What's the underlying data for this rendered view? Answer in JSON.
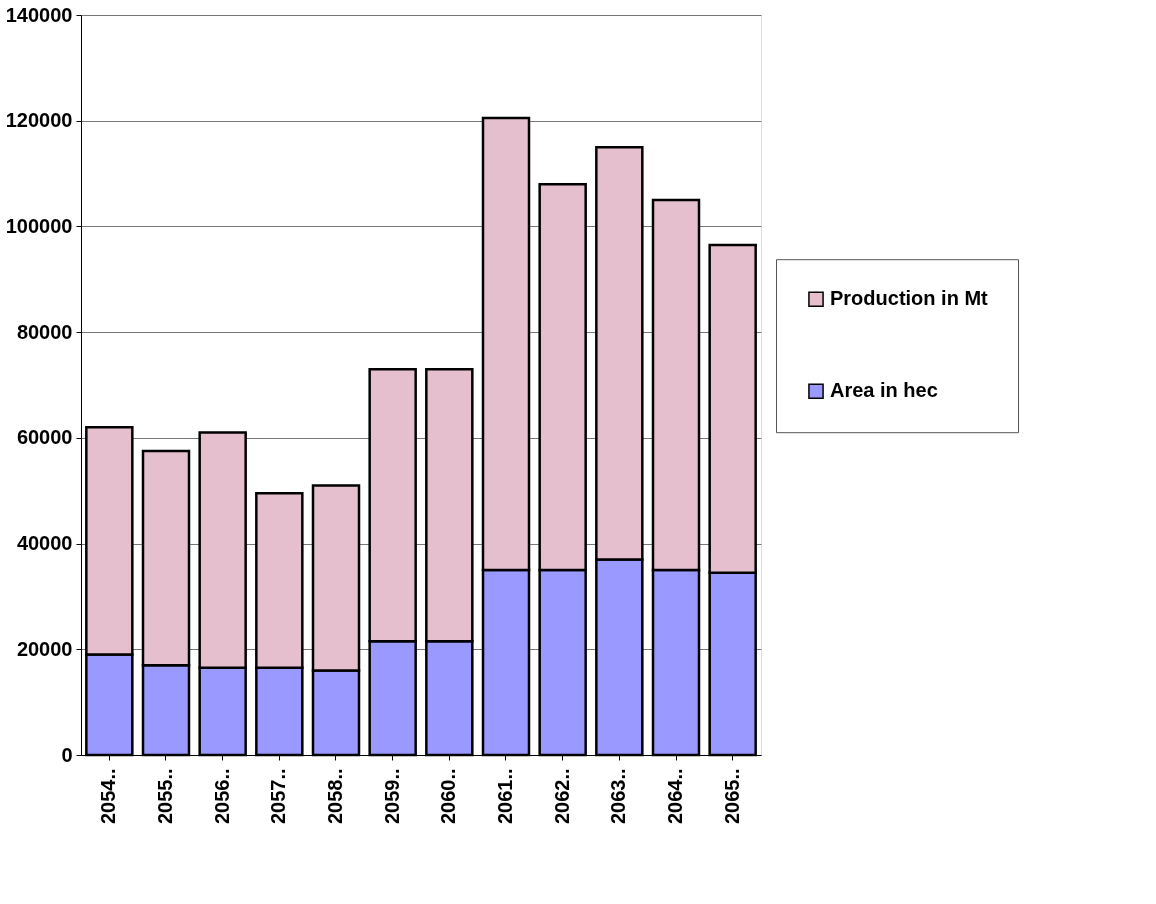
{
  "chart_data": {
    "type": "bar",
    "stacked": true,
    "categories": [
      "2054..",
      "2055..",
      "2056..",
      "2057..",
      "2058..",
      "2059..",
      "2060..",
      "2061..",
      "2062..",
      "2063..",
      "2064..",
      "2065.."
    ],
    "series": [
      {
        "name": "Area in hec",
        "color": "#9999ff",
        "values": [
          19000,
          17000,
          16500,
          16500,
          16000,
          21500,
          21500,
          35000,
          35000,
          37000,
          35000,
          34500
        ]
      },
      {
        "name": "Production in Mt",
        "color": "#e6bfcf",
        "values": [
          43000,
          40500,
          44500,
          33000,
          35000,
          51500,
          51500,
          85500,
          73000,
          78000,
          70000,
          62000
        ]
      }
    ],
    "ylim": [
      0,
      140000
    ],
    "yticks": [
      0,
      20000,
      40000,
      60000,
      80000,
      100000,
      120000,
      140000
    ],
    "grid": "y",
    "legend": "right"
  }
}
